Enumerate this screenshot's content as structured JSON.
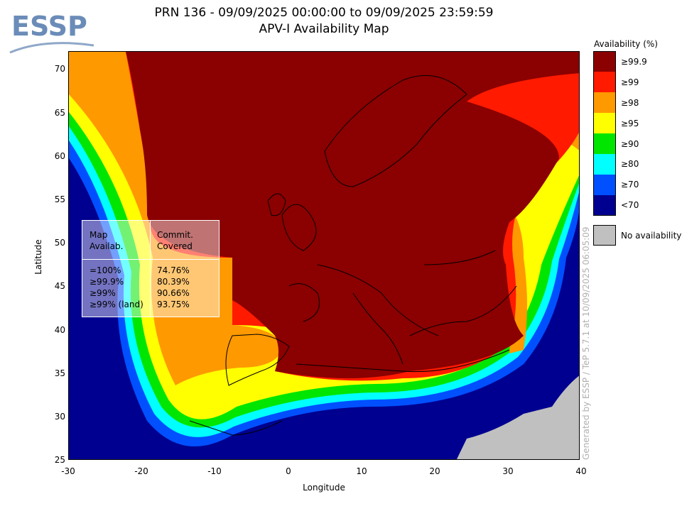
{
  "logo": {
    "text": "ESSP",
    "color": "#6b8cb8"
  },
  "title": {
    "line1": "PRN 136 - 09/09/2025 00:00:00 to 09/09/2025 23:59:59",
    "line2": "APV-I Availability Map"
  },
  "axes": {
    "xlabel": "Longitude",
    "ylabel": "Latitude",
    "x_ticks": [
      "-30",
      "-20",
      "-10",
      "0",
      "10",
      "20",
      "30",
      "40"
    ],
    "y_ticks": [
      "70",
      "65",
      "60",
      "55",
      "50",
      "45",
      "40",
      "35",
      "30",
      "25"
    ],
    "xlim": [
      -30,
      40
    ],
    "ylim": [
      25,
      72
    ]
  },
  "legend": {
    "title": "Availability (%)",
    "items": [
      {
        "label": "≥99.9",
        "color": "#8b0000"
      },
      {
        "label": "≥99",
        "color": "#ff1a00"
      },
      {
        "label": "≥98",
        "color": "#ff9900"
      },
      {
        "label": "≥95",
        "color": "#ffff00"
      },
      {
        "label": "≥90",
        "color": "#00e600"
      },
      {
        "label": "≥80",
        "color": "#00ffff"
      },
      {
        "label": "≥70",
        "color": "#0050ff"
      },
      {
        "label": "<70",
        "color": "#000090"
      }
    ],
    "no_availability": {
      "label": "No availability",
      "color": "#c0c0c0"
    }
  },
  "stats": {
    "col1_header": [
      "Map",
      "Availab."
    ],
    "col2_header": [
      "Commit.",
      "Covered"
    ],
    "rows": [
      {
        "level": "=100%",
        "covered": "74.76%"
      },
      {
        "level": "≥99.9%",
        "covered": "80.39%"
      },
      {
        "level": "≥99%",
        "covered": "90.66%"
      },
      {
        "level": "≥99% (land)",
        "covered": "93.75%"
      }
    ]
  },
  "credit": "Generated by ESSP / TeP 5.7.1 at 10/09/2025 06:05:09"
}
